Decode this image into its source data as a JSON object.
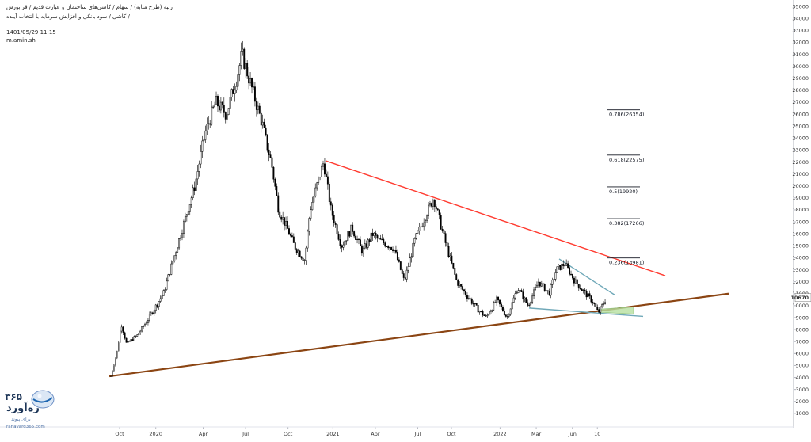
{
  "header": {
    "title": "ﺭﺗﺒﻪ (ﻃﺮﺡ ﻣﺘﺎﺑﻪ) / ﺳﻬﺎﻡ / ﮐﺎﺷﯽﻫﺎﯼ ﺳﺎﺧﺘﻤﺎﻥ ﻭ ﻋﺒﺎﺭﺕ ﻗﺪﯾﻢ / ﻗﺮﺍﺑﻮﺭﺱ",
    "subtitle": "ﮐﺎﺷﯽ / ﺳﻮﺩ ﺑﺎﻧﮑﯽ ﻭ ﺍﻓﺰﺍﯾﺶ ﺳﺮﻣﺎﯾﻪ ﺑﺎ ﺍﻧﺘﺨﺎﺏ ﺁﯾﻨﺪﻩ /",
    "date": "1401/05/29 11:15",
    "author": "m.amin.sh"
  },
  "logo": {
    "number": "۳۶۵",
    "name": "ره‌آورد",
    "tagline": "برای پیوند",
    "url": "rahavard365.com"
  },
  "colors": {
    "resistance": "#ff3b30",
    "support": "#8b4513",
    "wedge": "#6fa8b8",
    "zone": "#b7e0a0",
    "candle": "#000000",
    "axis_text": "#333333"
  },
  "chart_data": {
    "type": "candlestick",
    "ylim": [
      0,
      35000
    ],
    "yticks": [
      1000,
      2000,
      3000,
      4000,
      5000,
      6000,
      7000,
      8000,
      9000,
      10000,
      11000,
      12000,
      13000,
      14000,
      15000,
      16000,
      17000,
      18000,
      19000,
      20000,
      21000,
      22000,
      23000,
      24000,
      25000,
      26000,
      27000,
      28000,
      29000,
      30000,
      31000,
      32000,
      33000,
      34000,
      35000
    ],
    "current_price_label": "10670",
    "current_price": 10670,
    "xticks": [
      "Oct",
      "2020",
      "Apr",
      "Jul",
      "Oct",
      "2021",
      "Apr",
      "Jul",
      "Oct",
      "2022",
      "Mar",
      "Jun",
      "10"
    ],
    "price_path": [
      [
        0,
        4100
      ],
      [
        0.6,
        6200
      ],
      [
        1.0,
        8500
      ],
      [
        1.5,
        6800
      ],
      [
        2.5,
        7500
      ],
      [
        3.5,
        8800
      ],
      [
        5.0,
        11000
      ],
      [
        6.5,
        15500
      ],
      [
        8.0,
        20000
      ],
      [
        9.0,
        24500
      ],
      [
        10.0,
        27000
      ],
      [
        11.0,
        26000
      ],
      [
        12.0,
        29000
      ],
      [
        12.5,
        31000
      ],
      [
        13.5,
        28000
      ],
      [
        14.5,
        25000
      ],
      [
        15.0,
        23000
      ],
      [
        15.3,
        22000
      ],
      [
        16.0,
        18000
      ],
      [
        16.8,
        16500
      ],
      [
        17.5,
        15000
      ],
      [
        18.5,
        13800
      ],
      [
        19.0,
        18000
      ],
      [
        19.8,
        20500
      ],
      [
        20.3,
        22000
      ],
      [
        21.0,
        18000
      ],
      [
        22.0,
        15000
      ],
      [
        23.0,
        16500
      ],
      [
        24.0,
        14500
      ],
      [
        25.0,
        16000
      ],
      [
        25.5,
        15500
      ],
      [
        27.0,
        14800
      ],
      [
        28.0,
        12000
      ],
      [
        29.0,
        15500
      ],
      [
        30.0,
        17500
      ],
      [
        30.8,
        19000
      ],
      [
        32.0,
        15000
      ],
      [
        33.0,
        12000
      ],
      [
        34.0,
        10800
      ],
      [
        35.0,
        9700
      ],
      [
        35.8,
        9000
      ],
      [
        36.8,
        10500
      ],
      [
        37.8,
        9000
      ],
      [
        38.8,
        11500
      ],
      [
        39.8,
        10000
      ],
      [
        40.8,
        12000
      ],
      [
        41.8,
        11000
      ],
      [
        42.5,
        13000
      ],
      [
        43.3,
        13500
      ],
      [
        44.3,
        12000
      ],
      [
        45.3,
        11000
      ],
      [
        46.0,
        10300
      ],
      [
        46.5,
        9400
      ],
      [
        47.0,
        10200
      ],
      [
        47.3,
        10670
      ]
    ],
    "fib_levels": [
      {
        "label": "0.236(13981)",
        "value": 13981
      },
      {
        "label": "0.382(17266)",
        "value": 17266
      },
      {
        "label": "0.5(19920)",
        "value": 19920
      },
      {
        "label": "0.618(22575)",
        "value": 22575
      },
      {
        "label": "0.786(26354)",
        "value": 26354
      }
    ]
  }
}
